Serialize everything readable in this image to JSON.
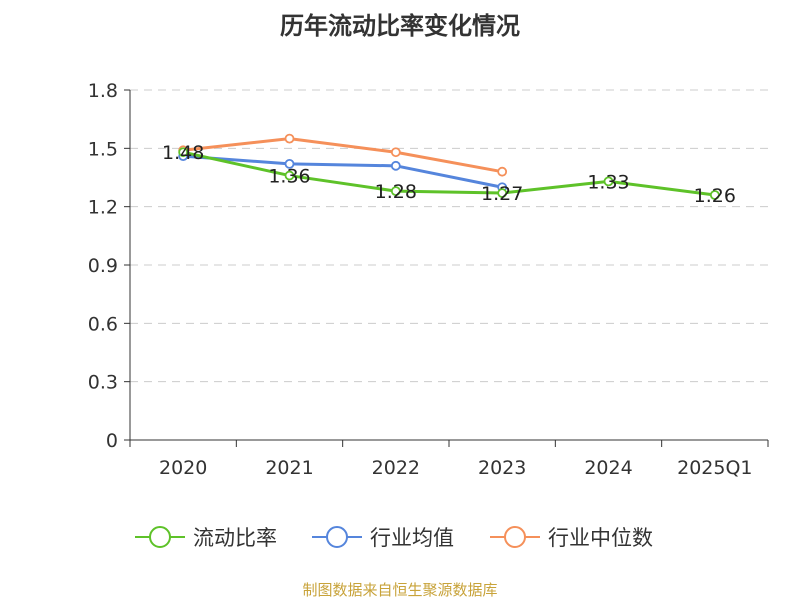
{
  "chart_data": {
    "type": "line",
    "title": "历年流动比率变化情况",
    "categories": [
      "2020",
      "2021",
      "2022",
      "2023",
      "2024",
      "2025Q1"
    ],
    "y_ticks": [
      "0",
      "0.3",
      "0.6",
      "0.9",
      "1.2",
      "1.5",
      "1.8"
    ],
    "ylim": [
      0,
      1.8
    ],
    "grid": true,
    "legend_position": "bottom",
    "series": [
      {
        "name": "流动比率",
        "color": "#5ec229",
        "values": [
          1.48,
          1.36,
          1.28,
          1.27,
          1.33,
          1.26
        ],
        "data_labels": [
          "1.48",
          "1.36",
          "1.28",
          "1.27",
          "1.33",
          "1.26"
        ]
      },
      {
        "name": "行业均值",
        "color": "#5585dc",
        "values": [
          1.46,
          1.42,
          1.41,
          1.3,
          null,
          null
        ]
      },
      {
        "name": "行业中位数",
        "color": "#f5905a",
        "values": [
          1.49,
          1.55,
          1.48,
          1.38,
          null,
          null
        ]
      }
    ]
  },
  "source_note": "制图数据来自恒生聚源数据库"
}
